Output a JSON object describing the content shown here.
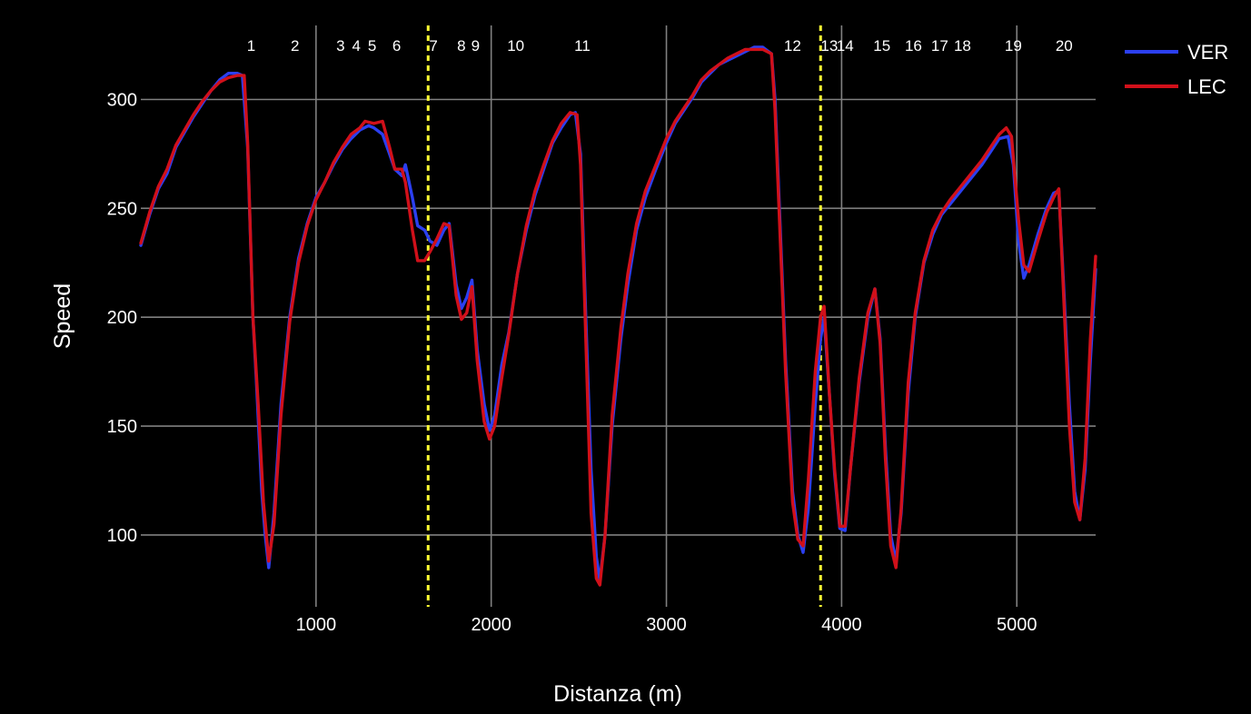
{
  "chart_data": {
    "type": "line",
    "xlabel": "Distanza (m)",
    "ylabel": "Speed",
    "xlim": [
      0,
      5450
    ],
    "ylim": [
      67,
      334
    ],
    "x_ticks": [
      1000,
      2000,
      3000,
      4000,
      5000
    ],
    "y_ticks": [
      100,
      150,
      200,
      250,
      300
    ],
    "grid": true,
    "legend_position": "top-right",
    "colors": {
      "background": "#000000",
      "grid": "#808080",
      "marker": "#ffff33"
    },
    "vertical_markers": [
      1640,
      3880
    ],
    "corners": [
      {
        "label": "1",
        "x": 630
      },
      {
        "label": "2",
        "x": 880
      },
      {
        "label": "3",
        "x": 1140
      },
      {
        "label": "4",
        "x": 1230
      },
      {
        "label": "5",
        "x": 1320
      },
      {
        "label": "6",
        "x": 1460
      },
      {
        "label": "7",
        "x": 1670
      },
      {
        "label": "8",
        "x": 1830
      },
      {
        "label": "9",
        "x": 1910
      },
      {
        "label": "10",
        "x": 2140
      },
      {
        "label": "11",
        "x": 2520
      },
      {
        "label": "12",
        "x": 3720
      },
      {
        "label": "13",
        "x": 3930
      },
      {
        "label": "14",
        "x": 4020
      },
      {
        "label": "15",
        "x": 4230
      },
      {
        "label": "16",
        "x": 4410
      },
      {
        "label": "17",
        "x": 4560
      },
      {
        "label": "18",
        "x": 4690
      },
      {
        "label": "19",
        "x": 4980
      },
      {
        "label": "20",
        "x": 5270
      }
    ],
    "series": [
      {
        "name": "VER",
        "color": "#2b3ff0",
        "points": [
          [
            0,
            233
          ],
          [
            50,
            247
          ],
          [
            100,
            259
          ],
          [
            150,
            266
          ],
          [
            200,
            278
          ],
          [
            250,
            285
          ],
          [
            300,
            292
          ],
          [
            350,
            298
          ],
          [
            400,
            304
          ],
          [
            450,
            309
          ],
          [
            500,
            312
          ],
          [
            550,
            312
          ],
          [
            580,
            311
          ],
          [
            610,
            278
          ],
          [
            640,
            200
          ],
          [
            660,
            170
          ],
          [
            690,
            120
          ],
          [
            710,
            100
          ],
          [
            730,
            85
          ],
          [
            760,
            110
          ],
          [
            800,
            160
          ],
          [
            850,
            200
          ],
          [
            900,
            227
          ],
          [
            950,
            243
          ],
          [
            1000,
            255
          ],
          [
            1050,
            262
          ],
          [
            1100,
            270
          ],
          [
            1150,
            277
          ],
          [
            1200,
            282
          ],
          [
            1250,
            286
          ],
          [
            1300,
            288
          ],
          [
            1330,
            287
          ],
          [
            1380,
            284
          ],
          [
            1420,
            275
          ],
          [
            1450,
            268
          ],
          [
            1490,
            265
          ],
          [
            1510,
            270
          ],
          [
            1550,
            255
          ],
          [
            1580,
            242
          ],
          [
            1620,
            240
          ],
          [
            1650,
            235
          ],
          [
            1690,
            233
          ],
          [
            1730,
            240
          ],
          [
            1760,
            243
          ],
          [
            1800,
            215
          ],
          [
            1830,
            204
          ],
          [
            1860,
            209
          ],
          [
            1890,
            217
          ],
          [
            1920,
            185
          ],
          [
            1960,
            160
          ],
          [
            1990,
            148
          ],
          [
            2020,
            155
          ],
          [
            2060,
            178
          ],
          [
            2100,
            193
          ],
          [
            2150,
            220
          ],
          [
            2200,
            240
          ],
          [
            2250,
            256
          ],
          [
            2300,
            268
          ],
          [
            2350,
            280
          ],
          [
            2400,
            287
          ],
          [
            2450,
            293
          ],
          [
            2480,
            294
          ],
          [
            2510,
            275
          ],
          [
            2540,
            200
          ],
          [
            2570,
            130
          ],
          [
            2600,
            90
          ],
          [
            2620,
            79
          ],
          [
            2650,
            100
          ],
          [
            2690,
            150
          ],
          [
            2740,
            190
          ],
          [
            2780,
            215
          ],
          [
            2830,
            240
          ],
          [
            2880,
            255
          ],
          [
            2940,
            268
          ],
          [
            3000,
            280
          ],
          [
            3050,
            289
          ],
          [
            3100,
            295
          ],
          [
            3150,
            301
          ],
          [
            3200,
            308
          ],
          [
            3250,
            312
          ],
          [
            3300,
            316
          ],
          [
            3350,
            318
          ],
          [
            3400,
            320
          ],
          [
            3450,
            322
          ],
          [
            3500,
            324
          ],
          [
            3550,
            324
          ],
          [
            3600,
            321
          ],
          [
            3620,
            300
          ],
          [
            3650,
            240
          ],
          [
            3680,
            180
          ],
          [
            3720,
            120
          ],
          [
            3750,
            100
          ],
          [
            3780,
            92
          ],
          [
            3810,
            112
          ],
          [
            3850,
            160
          ],
          [
            3880,
            190
          ],
          [
            3900,
            200
          ],
          [
            3930,
            165
          ],
          [
            3960,
            128
          ],
          [
            3990,
            103
          ],
          [
            4020,
            102
          ],
          [
            4050,
            130
          ],
          [
            4100,
            170
          ],
          [
            4150,
            200
          ],
          [
            4190,
            213
          ],
          [
            4220,
            190
          ],
          [
            4250,
            140
          ],
          [
            4280,
            100
          ],
          [
            4310,
            88
          ],
          [
            4340,
            110
          ],
          [
            4380,
            165
          ],
          [
            4420,
            200
          ],
          [
            4470,
            225
          ],
          [
            4520,
            238
          ],
          [
            4570,
            247
          ],
          [
            4620,
            252
          ],
          [
            4680,
            258
          ],
          [
            4740,
            264
          ],
          [
            4800,
            270
          ],
          [
            4850,
            276
          ],
          [
            4900,
            282
          ],
          [
            4950,
            283
          ],
          [
            4980,
            270
          ],
          [
            5010,
            235
          ],
          [
            5040,
            218
          ],
          [
            5070,
            224
          ],
          [
            5120,
            238
          ],
          [
            5170,
            250
          ],
          [
            5210,
            257
          ],
          [
            5240,
            258
          ],
          [
            5270,
            210
          ],
          [
            5300,
            160
          ],
          [
            5330,
            120
          ],
          [
            5360,
            107
          ],
          [
            5390,
            130
          ],
          [
            5420,
            180
          ],
          [
            5450,
            222
          ]
        ]
      },
      {
        "name": "LEC",
        "color": "#d1101a",
        "points": [
          [
            0,
            234
          ],
          [
            50,
            248
          ],
          [
            100,
            260
          ],
          [
            150,
            268
          ],
          [
            200,
            279
          ],
          [
            250,
            286
          ],
          [
            300,
            293
          ],
          [
            350,
            299
          ],
          [
            400,
            304
          ],
          [
            450,
            308
          ],
          [
            500,
            310
          ],
          [
            550,
            311
          ],
          [
            590,
            311
          ],
          [
            610,
            280
          ],
          [
            640,
            200
          ],
          [
            670,
            160
          ],
          [
            700,
            115
          ],
          [
            730,
            88
          ],
          [
            760,
            105
          ],
          [
            800,
            155
          ],
          [
            850,
            198
          ],
          [
            900,
            225
          ],
          [
            950,
            242
          ],
          [
            1000,
            254
          ],
          [
            1050,
            262
          ],
          [
            1100,
            271
          ],
          [
            1150,
            278
          ],
          [
            1200,
            284
          ],
          [
            1250,
            287
          ],
          [
            1280,
            290
          ],
          [
            1330,
            289
          ],
          [
            1380,
            290
          ],
          [
            1420,
            278
          ],
          [
            1450,
            268
          ],
          [
            1490,
            268
          ],
          [
            1510,
            262
          ],
          [
            1550,
            240
          ],
          [
            1580,
            226
          ],
          [
            1620,
            226
          ],
          [
            1650,
            230
          ],
          [
            1690,
            236
          ],
          [
            1730,
            243
          ],
          [
            1760,
            242
          ],
          [
            1800,
            210
          ],
          [
            1830,
            199
          ],
          [
            1860,
            202
          ],
          [
            1890,
            214
          ],
          [
            1920,
            180
          ],
          [
            1960,
            152
          ],
          [
            1990,
            144
          ],
          [
            2020,
            150
          ],
          [
            2060,
            172
          ],
          [
            2100,
            192
          ],
          [
            2150,
            220
          ],
          [
            2200,
            242
          ],
          [
            2250,
            258
          ],
          [
            2300,
            270
          ],
          [
            2350,
            281
          ],
          [
            2400,
            289
          ],
          [
            2450,
            294
          ],
          [
            2490,
            293
          ],
          [
            2510,
            270
          ],
          [
            2540,
            190
          ],
          [
            2570,
            110
          ],
          [
            2600,
            80
          ],
          [
            2620,
            77
          ],
          [
            2650,
            100
          ],
          [
            2690,
            155
          ],
          [
            2740,
            195
          ],
          [
            2780,
            220
          ],
          [
            2830,
            243
          ],
          [
            2880,
            258
          ],
          [
            2940,
            270
          ],
          [
            3000,
            282
          ],
          [
            3050,
            290
          ],
          [
            3100,
            296
          ],
          [
            3150,
            302
          ],
          [
            3200,
            309
          ],
          [
            3250,
            313
          ],
          [
            3300,
            316
          ],
          [
            3350,
            319
          ],
          [
            3400,
            321
          ],
          [
            3450,
            323
          ],
          [
            3500,
            323
          ],
          [
            3550,
            323
          ],
          [
            3600,
            321
          ],
          [
            3620,
            295
          ],
          [
            3650,
            235
          ],
          [
            3680,
            175
          ],
          [
            3720,
            115
          ],
          [
            3750,
            98
          ],
          [
            3780,
            95
          ],
          [
            3810,
            125
          ],
          [
            3850,
            175
          ],
          [
            3880,
            200
          ],
          [
            3900,
            205
          ],
          [
            3930,
            165
          ],
          [
            3960,
            130
          ],
          [
            3990,
            104
          ],
          [
            4020,
            104
          ],
          [
            4050,
            130
          ],
          [
            4100,
            172
          ],
          [
            4150,
            202
          ],
          [
            4190,
            213
          ],
          [
            4220,
            188
          ],
          [
            4250,
            135
          ],
          [
            4280,
            95
          ],
          [
            4310,
            85
          ],
          [
            4340,
            112
          ],
          [
            4380,
            170
          ],
          [
            4420,
            202
          ],
          [
            4470,
            226
          ],
          [
            4520,
            240
          ],
          [
            4570,
            248
          ],
          [
            4620,
            254
          ],
          [
            4680,
            260
          ],
          [
            4740,
            266
          ],
          [
            4800,
            272
          ],
          [
            4850,
            278
          ],
          [
            4900,
            284
          ],
          [
            4940,
            287
          ],
          [
            4970,
            283
          ],
          [
            5010,
            245
          ],
          [
            5040,
            224
          ],
          [
            5070,
            221
          ],
          [
            5120,
            235
          ],
          [
            5170,
            248
          ],
          [
            5210,
            255
          ],
          [
            5240,
            259
          ],
          [
            5270,
            205
          ],
          [
            5300,
            150
          ],
          [
            5330,
            115
          ],
          [
            5360,
            107
          ],
          [
            5390,
            135
          ],
          [
            5420,
            190
          ],
          [
            5450,
            228
          ]
        ]
      }
    ]
  }
}
